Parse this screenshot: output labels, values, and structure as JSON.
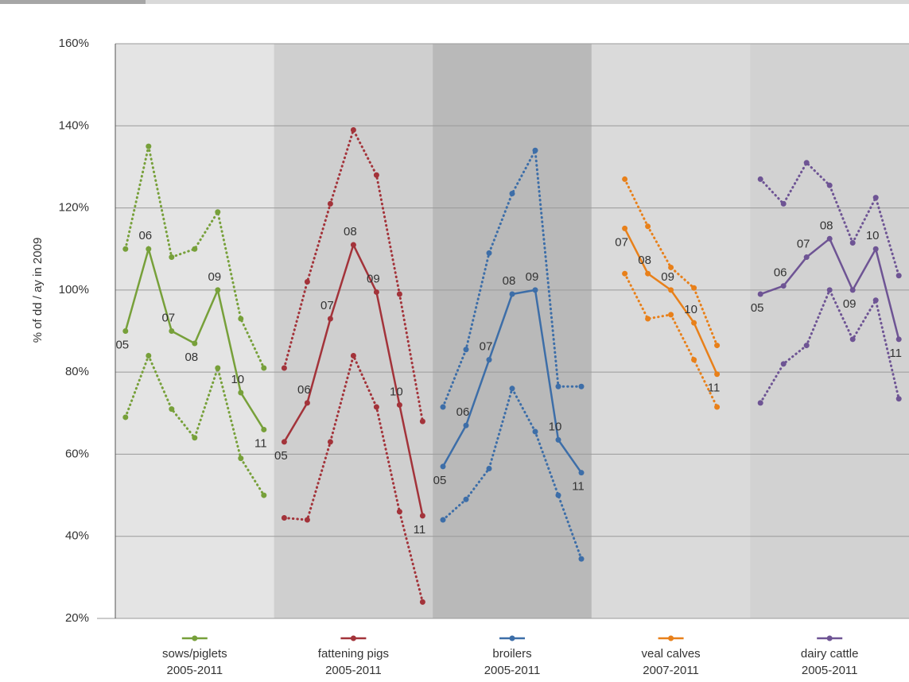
{
  "chart_data": {
    "type": "line",
    "y_label": "% of dd / ay in 2009",
    "ylim": [
      20,
      160
    ],
    "yticks": [
      {
        "value": 20,
        "label": "20%"
      },
      {
        "value": 40,
        "label": "40%"
      },
      {
        "value": 60,
        "label": "60%"
      },
      {
        "value": 80,
        "label": "80%"
      },
      {
        "value": 100,
        "label": "100%"
      },
      {
        "value": 120,
        "label": "120%"
      },
      {
        "value": 140,
        "label": "140%"
      },
      {
        "value": 160,
        "label": "160%"
      }
    ],
    "grid": true,
    "panels": [
      {
        "name": "sows/piglets",
        "period": "2005-2011",
        "color": "#77a03a",
        "categories": [
          "05",
          "06",
          "07",
          "08",
          "09",
          "10",
          "11"
        ],
        "series": [
          {
            "style": "solid",
            "values": [
              90,
              110,
              90,
              87,
              100,
              75,
              66
            ]
          },
          {
            "style": "dotted",
            "values": [
              110,
              135,
              108,
              110,
              119,
              93,
              81
            ]
          },
          {
            "style": "dotted",
            "values": [
              69,
              84,
              71,
              64,
              81,
              59,
              50
            ]
          }
        ]
      },
      {
        "name": "fattening pigs",
        "period": "2005-2011",
        "color": "#a3333a",
        "categories": [
          "05",
          "06",
          "07",
          "08",
          "09",
          "10",
          "11"
        ],
        "series": [
          {
            "style": "solid",
            "values": [
              63,
              72.5,
              93,
              111,
              99.5,
              72,
              45
            ]
          },
          {
            "style": "dotted",
            "values": [
              81,
              102,
              121,
              139,
              128,
              99,
              68
            ]
          },
          {
            "style": "dotted",
            "values": [
              44.5,
              44,
              63,
              84,
              71.5,
              46,
              24
            ]
          }
        ]
      },
      {
        "name": "broilers",
        "period": "2005-2011",
        "color": "#3d6ea8",
        "categories": [
          "05",
          "06",
          "07",
          "08",
          "09",
          "10",
          "11"
        ],
        "series": [
          {
            "style": "solid",
            "values": [
              57,
              67,
              83,
              99,
              100,
              63.5,
              55.5
            ]
          },
          {
            "style": "dotted",
            "values": [
              71.5,
              85.5,
              109,
              123.5,
              134,
              76.5,
              76.5
            ]
          },
          {
            "style": "dotted",
            "values": [
              44,
              49,
              56.5,
              76,
              65.5,
              50,
              34.5
            ]
          }
        ]
      },
      {
        "name": "veal calves",
        "period": "2007-2011",
        "color": "#e8801a",
        "categories": [
          "07",
          "08",
          "09",
          "10",
          "11"
        ],
        "series": [
          {
            "style": "solid",
            "values": [
              115,
              104,
              100,
              92,
              79.5
            ]
          },
          {
            "style": "dotted",
            "values": [
              127,
              115.5,
              105.5,
              100.5,
              86.5
            ]
          },
          {
            "style": "dotted",
            "values": [
              104,
              93,
              94,
              83,
              71.5
            ]
          }
        ]
      },
      {
        "name": "dairy cattle",
        "period": "2005-2011",
        "color": "#6e5494",
        "categories": [
          "05",
          "06",
          "07",
          "08",
          "09",
          "10",
          "11"
        ],
        "series": [
          {
            "style": "solid",
            "values": [
              99,
              101,
              108,
              112.5,
              100,
              110,
              88
            ]
          },
          {
            "style": "dotted",
            "values": [
              127,
              121,
              131,
              125.5,
              111.5,
              122.5,
              103.5
            ]
          },
          {
            "style": "dotted",
            "values": [
              72.5,
              82,
              86.5,
              100,
              88,
              97.5,
              73.5
            ]
          }
        ]
      }
    ]
  }
}
